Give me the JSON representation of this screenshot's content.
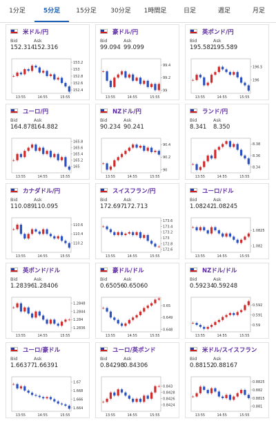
{
  "tabs": [
    "1分足",
    "5分足",
    "15分足",
    "30分足",
    "1時間足",
    "日足",
    "週足",
    "月足"
  ],
  "active_tab": 1,
  "bid_label": "Bid",
  "ask_label": "Ask",
  "cards": [
    {
      "name": "米ドル/円",
      "bid": "152.314",
      "ask": "152.316",
      "yticks": [
        153.2,
        153,
        152.8,
        152.6,
        152.4
      ],
      "xticks": [
        "13:55",
        "14:55",
        "15:55"
      ],
      "ylim": [
        152.3,
        153.3
      ],
      "closes": [
        152.8,
        152.9,
        152.85,
        153.0,
        152.95,
        153.1,
        153.05,
        152.9,
        152.95,
        152.8,
        152.85,
        152.7,
        152.75,
        152.6,
        152.5,
        152.35
      ]
    },
    {
      "name": "豪ドル/円",
      "bid": "99.094",
      "ask": "99.099",
      "yticks": [
        99.4,
        99.2,
        99
      ],
      "xticks": [
        "13:55",
        "14:55",
        "15:55"
      ],
      "ylim": [
        98.95,
        99.5
      ],
      "closes": [
        99.3,
        99.15,
        99.05,
        99.2,
        99.25,
        99.3,
        99.2,
        99.25,
        99.15,
        99.2,
        99.1,
        99.15,
        99.05,
        99.1,
        99.0,
        99.1
      ]
    },
    {
      "name": "英ポンド/円",
      "bid": "195.582",
      "ask": "195.589",
      "yticks": [
        196.5,
        196
      ],
      "xticks": [
        "13:55",
        "14:55",
        "15:55"
      ],
      "ylim": [
        195.5,
        196.8
      ],
      "closes": [
        196.0,
        196.2,
        196.1,
        195.8,
        195.9,
        196.2,
        196.3,
        196.5,
        196.4,
        196.3,
        196.2,
        196.3,
        196.1,
        195.9,
        195.8,
        195.6
      ]
    },
    {
      "name": "ユーロ/円",
      "bid": "164.878",
      "ask": "164.882",
      "yticks": [
        165.8,
        165.6,
        165.4,
        165.2,
        165
      ],
      "xticks": [
        "13:55",
        "14:55",
        "15:55"
      ],
      "ylim": [
        164.8,
        165.9
      ],
      "closes": [
        165.2,
        165.4,
        165.3,
        165.5,
        165.6,
        165.7,
        165.5,
        165.6,
        165.4,
        165.5,
        165.3,
        165.4,
        165.2,
        165.3,
        165.0,
        164.9
      ]
    },
    {
      "name": "NZドル/円",
      "bid": "90.234",
      "ask": "90.241",
      "yticks": [
        90.4,
        90.2,
        90
      ],
      "xticks": [
        "13:55",
        "14:55",
        "15:55"
      ],
      "ylim": [
        89.95,
        90.5
      ],
      "closes": [
        90.1,
        90.0,
        90.05,
        90.15,
        90.2,
        90.25,
        90.3,
        90.35,
        90.4,
        90.35,
        90.38,
        90.3,
        90.35,
        90.28,
        90.3,
        90.24
      ]
    },
    {
      "name": "ランド/円",
      "bid": "8.341",
      "ask": "8.350",
      "yticks": [
        8.38,
        8.36,
        8.34
      ],
      "xticks": [
        "13:55",
        "14:55",
        "15:55"
      ],
      "ylim": [
        8.33,
        8.39
      ],
      "closes": [
        8.345,
        8.335,
        8.34,
        8.35,
        8.36,
        8.355,
        8.37,
        8.375,
        8.38,
        8.385,
        8.375,
        8.38,
        8.37,
        8.36,
        8.355,
        8.345
      ]
    },
    {
      "name": "カナダドル/円",
      "bid": "110.089",
      "ask": "110.095",
      "yticks": [
        110.6,
        110.4,
        110.2
      ],
      "xticks": [
        "13:55",
        "14:55",
        "15:55"
      ],
      "ylim": [
        110.0,
        110.75
      ],
      "closes": [
        110.5,
        110.6,
        110.4,
        110.3,
        110.4,
        110.5,
        110.45,
        110.4,
        110.5,
        110.4,
        110.35,
        110.3,
        110.35,
        110.25,
        110.2,
        110.1
      ]
    },
    {
      "name": "スイスフラン/円",
      "bid": "172.697",
      "ask": "172.713",
      "yticks": [
        173.6,
        173.4,
        173.2,
        173,
        172.8,
        172.6
      ],
      "xticks": [
        "13:55",
        "14:55",
        "15:55"
      ],
      "ylim": [
        172.5,
        173.7
      ],
      "closes": [
        173.4,
        173.3,
        173.2,
        173.1,
        173.2,
        173.1,
        173.15,
        173.2,
        173.1,
        173.2,
        173.0,
        173.1,
        172.9,
        172.8,
        172.7,
        172.7
      ]
    },
    {
      "name": "ユーロ/ドル",
      "bid": "1.08242",
      "ask": "1.08245",
      "yticks": [
        1.0825,
        1.082
      ],
      "xticks": [
        "13:55",
        "14:55",
        "15:55"
      ],
      "ylim": [
        1.0818,
        1.0829
      ],
      "closes": [
        1.0826,
        1.0825,
        1.0826,
        1.0825,
        1.0824,
        1.0826,
        1.0825,
        1.0824,
        1.0823,
        1.0824,
        1.0823,
        1.0822,
        1.0821,
        1.0822,
        1.0823,
        1.0824
      ]
    },
    {
      "name": "英ポンド/ドル",
      "bid": "1.28396",
      "ask": "1.28406",
      "yticks": [
        1.2848,
        1.2844,
        1.284,
        1.2836
      ],
      "xticks": [
        "13:55",
        "14:55",
        "15:55"
      ],
      "ylim": [
        1.2834,
        1.2851
      ],
      "closes": [
        1.2846,
        1.2848,
        1.2844,
        1.2846,
        1.2843,
        1.2841,
        1.2844,
        1.2842,
        1.284,
        1.2838,
        1.284,
        1.2838,
        1.2837,
        1.2839,
        1.284,
        1.284
      ]
    },
    {
      "name": "豪ドル/ドル",
      "bid": "0.65056",
      "ask": "0.65060",
      "yticks": [
        0.65,
        0.649,
        0.648
      ],
      "xticks": [
        "13:55",
        "14:55",
        "15:55"
      ],
      "ylim": [
        0.6478,
        0.6507
      ],
      "closes": [
        0.6498,
        0.6495,
        0.649,
        0.6488,
        0.6485,
        0.6483,
        0.6485,
        0.6488,
        0.649,
        0.6492,
        0.6495,
        0.6498,
        0.65,
        0.6502,
        0.6505,
        0.6506
      ]
    },
    {
      "name": "NZドル/ドル",
      "bid": "0.59234",
      "ask": "0.59248",
      "yticks": [
        0.592,
        0.591,
        0.59
      ],
      "xticks": [
        "13:55",
        "14:55",
        "15:55"
      ],
      "ylim": [
        0.5893,
        0.5928
      ],
      "closes": [
        0.5902,
        0.59,
        0.5898,
        0.5896,
        0.5898,
        0.59,
        0.5903,
        0.5905,
        0.5908,
        0.591,
        0.5912,
        0.591,
        0.5913,
        0.5915,
        0.592,
        0.5924
      ]
    },
    {
      "name": "ユーロ/豪ドル",
      "bid": "1.66377",
      "ask": "1.66391",
      "yticks": [
        1.67,
        1.668,
        1.666,
        1.664
      ],
      "xticks": [
        "13:55",
        "14:55",
        "15:55"
      ],
      "ylim": [
        1.6632,
        1.6712
      ],
      "closes": [
        1.6695,
        1.6685,
        1.669,
        1.668,
        1.6675,
        1.667,
        1.6668,
        1.6665,
        1.6662,
        1.6665,
        1.666,
        1.6655,
        1.665,
        1.6648,
        1.6645,
        1.6638
      ]
    },
    {
      "name": "ユーロ/英ポンド",
      "bid": "0.84298",
      "ask": "0.84306",
      "yticks": [
        0.843,
        0.8428,
        0.8426,
        0.8424
      ],
      "xticks": [
        "13:55",
        "14:55",
        "15:55"
      ],
      "ylim": [
        0.8422,
        0.8433
      ],
      "closes": [
        0.8425,
        0.8426,
        0.8428,
        0.8427,
        0.8429,
        0.8428,
        0.8427,
        0.8426,
        0.8425,
        0.8426,
        0.8425,
        0.8427,
        0.8426,
        0.8428,
        0.843,
        0.843
      ]
    },
    {
      "name": "米ドル/スイスフラン",
      "bid": "0.88152",
      "ask": "0.88167",
      "yticks": [
        0.8825,
        0.882,
        0.8815,
        0.881
      ],
      "xticks": [
        "13:55",
        "14:55",
        "15:55"
      ],
      "ylim": [
        0.8807,
        0.8828
      ],
      "closes": [
        0.8816,
        0.8818,
        0.8822,
        0.882,
        0.8818,
        0.8821,
        0.8819,
        0.8816,
        0.8815,
        0.8817,
        0.8814,
        0.8816,
        0.8818,
        0.882,
        0.8817,
        0.8815
      ]
    }
  ]
}
